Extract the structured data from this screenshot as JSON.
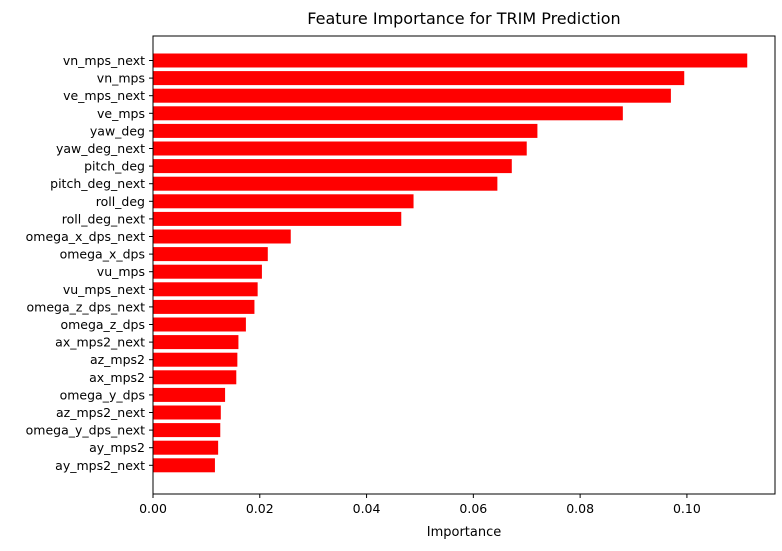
{
  "chart_data": {
    "type": "bar",
    "orientation": "horizontal",
    "title": "Feature Importance for TRIM Prediction",
    "xlabel": "Importance",
    "ylabel": "",
    "xlim": [
      0,
      0.1165
    ],
    "xticks": [
      0.0,
      0.02,
      0.04,
      0.06,
      0.08,
      0.1
    ],
    "xtick_labels": [
      "0.00",
      "0.02",
      "0.04",
      "0.06",
      "0.08",
      "0.10"
    ],
    "grid": false,
    "bar_color": "#ff0000",
    "categories": [
      "vn_mps_next",
      "vn_mps",
      "ve_mps_next",
      "ve_mps",
      "yaw_deg",
      "yaw_deg_next",
      "pitch_deg",
      "pitch_deg_next",
      "roll_deg",
      "roll_deg_next",
      "omega_x_dps_next",
      "omega_x_dps",
      "vu_mps",
      "vu_mps_next",
      "omega_z_dps_next",
      "omega_z_dps",
      "ax_mps2_next",
      "az_mps2",
      "ax_mps2",
      "omega_y_dps",
      "az_mps2_next",
      "omega_y_dps_next",
      "ay_mps2",
      "ay_mps2_next"
    ],
    "values": [
      0.1113,
      0.0995,
      0.097,
      0.088,
      0.072,
      0.07,
      0.0672,
      0.0645,
      0.0488,
      0.0465,
      0.0258,
      0.0215,
      0.0204,
      0.0196,
      0.019,
      0.0174,
      0.016,
      0.0158,
      0.0156,
      0.0135,
      0.0127,
      0.0126,
      0.0122,
      0.0116
    ]
  }
}
